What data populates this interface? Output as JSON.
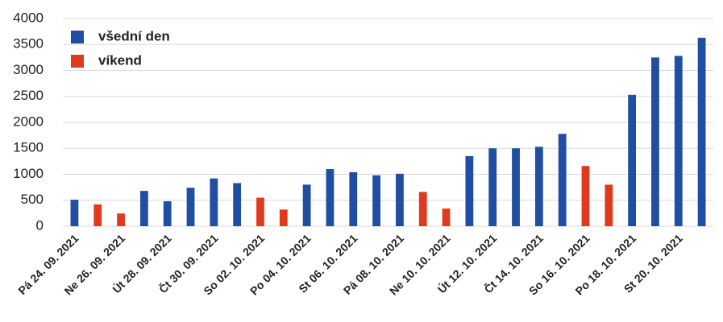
{
  "chart_data": {
    "type": "bar",
    "categories": [
      "Pá 24. 09. 2021",
      null,
      "Ne 26. 09. 2021",
      null,
      "Út 28. 09. 2021",
      null,
      "Čt 30. 09. 2021",
      null,
      "So 02. 10. 2021",
      null,
      "Po 04. 10. 2021",
      null,
      "St 06. 10. 2021",
      null,
      "Pá 08. 10. 2021",
      null,
      "Ne 10. 10. 2021",
      null,
      "Út 12. 10. 2021",
      null,
      "Čt 14. 10. 2021",
      null,
      "So 16. 10. 2021",
      null,
      "Po 18. 10. 2021",
      null,
      "St 20. 10. 2021",
      null
    ],
    "series": [
      {
        "name": "všední den",
        "color": "#1f4ea3",
        "values": [
          510,
          null,
          null,
          680,
          480,
          740,
          920,
          830,
          null,
          null,
          800,
          1100,
          1040,
          980,
          1010,
          null,
          null,
          1350,
          1500,
          1500,
          1530,
          1780,
          null,
          null,
          2530,
          3250,
          3280,
          3630
        ]
      },
      {
        "name": "víkend",
        "color": "#e03a1e",
        "values": [
          null,
          420,
          245,
          null,
          null,
          null,
          null,
          null,
          550,
          320,
          null,
          null,
          null,
          null,
          null,
          660,
          340,
          null,
          null,
          null,
          null,
          null,
          1160,
          800,
          null,
          null,
          null,
          null
        ]
      }
    ],
    "ylim": [
      0,
      4000
    ],
    "yticks": [
      0,
      500,
      1000,
      1500,
      2000,
      2500,
      3000,
      3500,
      4000
    ],
    "grid": true,
    "legend": "top-left"
  }
}
